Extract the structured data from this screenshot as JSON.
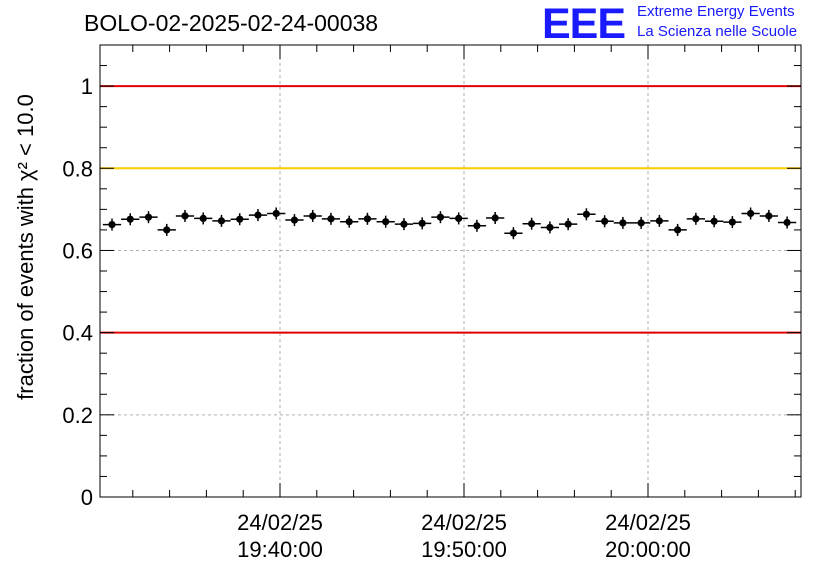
{
  "title": "BOLO-02-2025-02-24-00038",
  "logo": {
    "mark": "EEE",
    "line1": "Extreme Energy Events",
    "line2": "La Scienza nelle Scuole",
    "color": "#1a1aff"
  },
  "chart_data": {
    "type": "scatter",
    "title": "BOLO-02-2025-02-24-00038",
    "xlabel": "",
    "ylabel": "fraction of events with χ² < 10.0",
    "ylim": [
      0,
      1.1
    ],
    "grid": true,
    "x_ticks": [
      {
        "date": "24/02/25",
        "time": "19:40:00"
      },
      {
        "date": "24/02/25",
        "time": "19:50:00"
      },
      {
        "date": "24/02/25",
        "time": "20:00:00"
      }
    ],
    "y_ticks": [
      "0",
      "0.2",
      "0.4",
      "0.6",
      "0.8",
      "1"
    ],
    "reference_lines": [
      {
        "y": 1.0,
        "color": "#e00000"
      },
      {
        "y": 0.8,
        "color": "#ffcc00"
      },
      {
        "y": 0.4,
        "color": "#e00000"
      }
    ],
    "series": [
      {
        "values": [
          0.663,
          0.676,
          0.681,
          0.65,
          0.684,
          0.678,
          0.672,
          0.676,
          0.686,
          0.69,
          0.674,
          0.684,
          0.677,
          0.67,
          0.677,
          0.67,
          0.664,
          0.666,
          0.681,
          0.678,
          0.66,
          0.679,
          0.642,
          0.665,
          0.656,
          0.664,
          0.688,
          0.671,
          0.667,
          0.667,
          0.672,
          0.65,
          0.677,
          0.671,
          0.669,
          0.69,
          0.684,
          0.668
        ],
        "color": "#000000"
      }
    ]
  }
}
